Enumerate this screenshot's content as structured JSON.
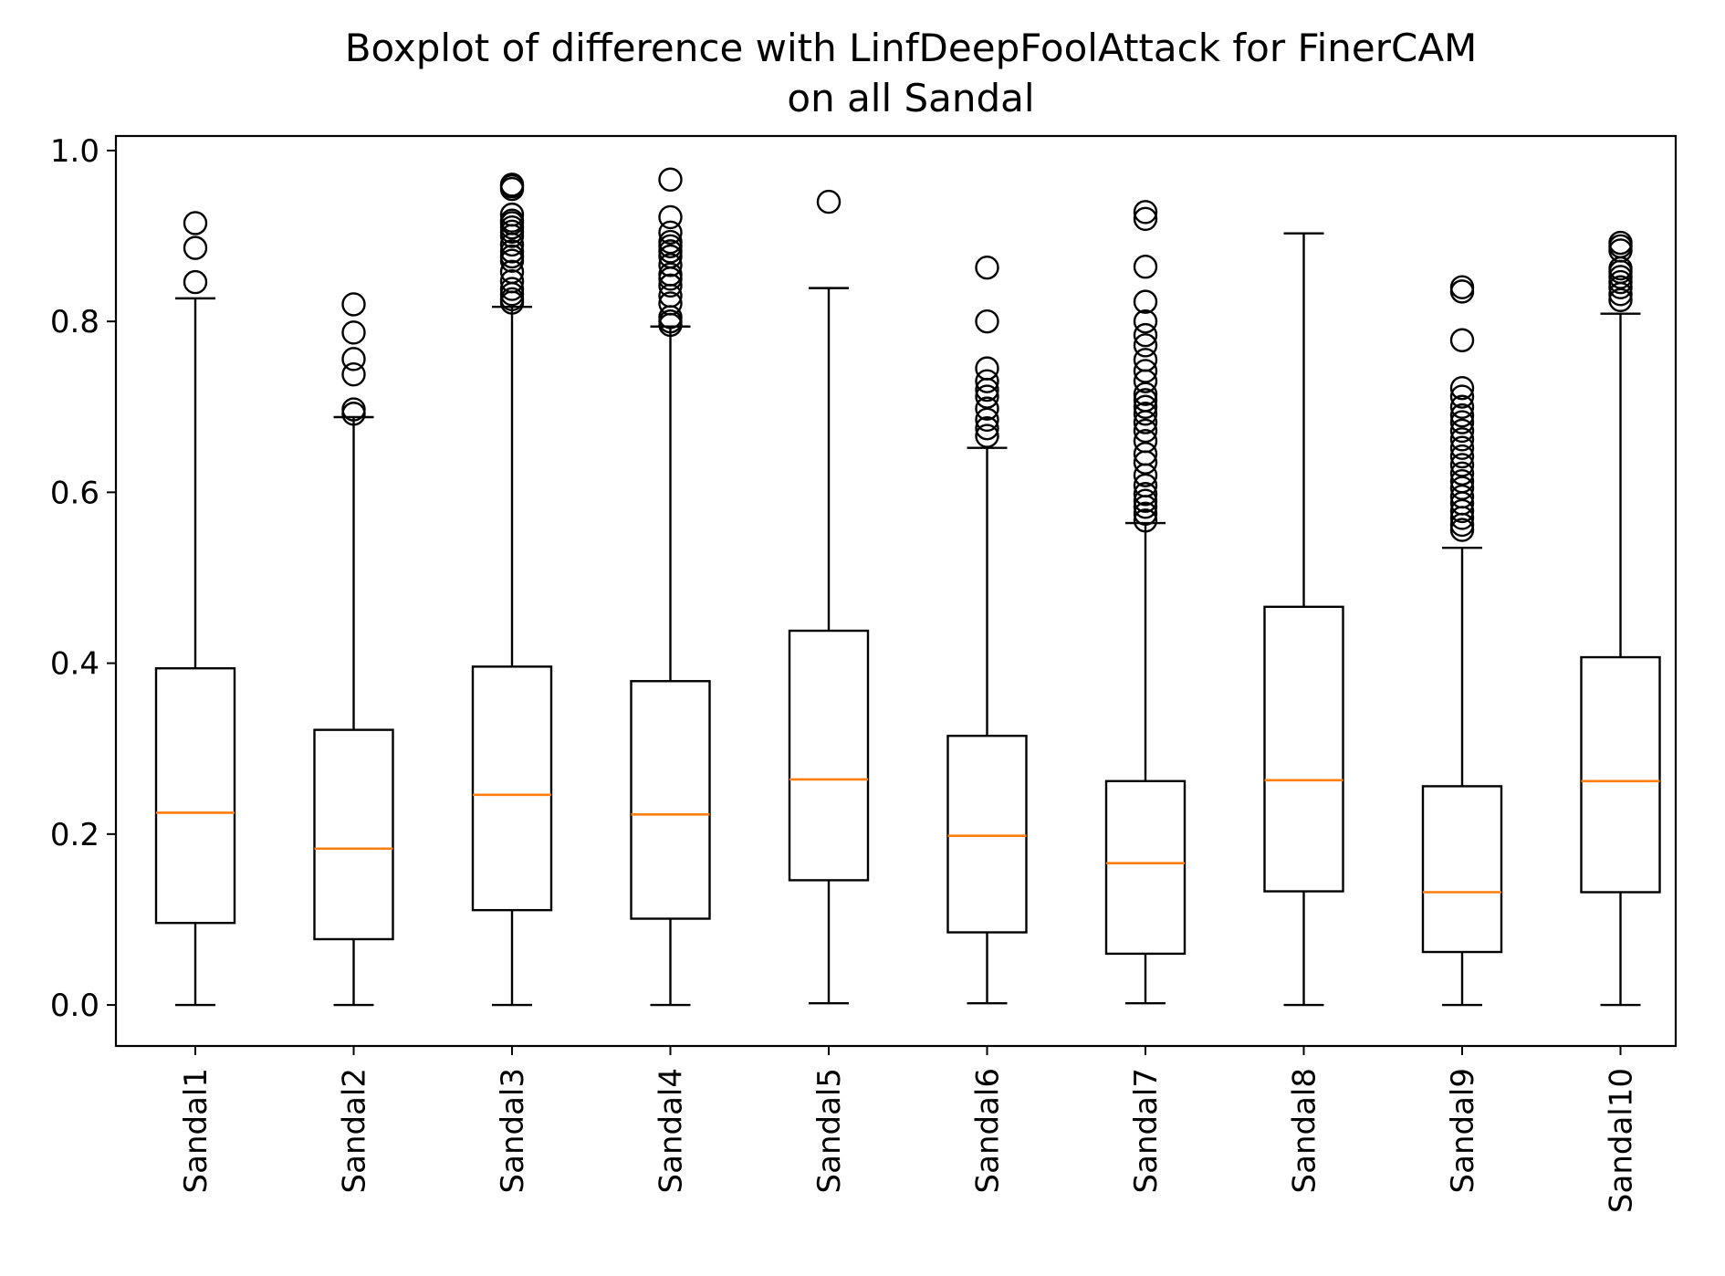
{
  "chart_data": {
    "type": "box",
    "title": [
      "Boxplot of difference with LinfDeepFoolAttack for FinerCAM",
      "on all Sandal"
    ],
    "xlabel": "",
    "ylabel": "",
    "ylim": [
      -0.048,
      1.017
    ],
    "yticks": [
      0.0,
      0.2,
      0.4,
      0.6,
      0.8,
      1.0
    ],
    "ytick_labels": [
      "0.0",
      "0.2",
      "0.4",
      "0.6",
      "0.8",
      "1.0"
    ],
    "grid": false,
    "legend": false,
    "colors": {
      "box": "#000000",
      "median": "#ff7f0e",
      "outlier": "#000000",
      "background": "#ffffff"
    },
    "categories": [
      "Sandal1",
      "Sandal2",
      "Sandal3",
      "Sandal4",
      "Sandal5",
      "Sandal6",
      "Sandal7",
      "Sandal8",
      "Sandal9",
      "Sandal10"
    ],
    "boxes": [
      {
        "label": "Sandal1",
        "whislo": 0.0,
        "q1": 0.096,
        "med": 0.225,
        "q3": 0.394,
        "whishi": 0.827,
        "fliers": [
          0.846,
          0.886,
          0.915
        ]
      },
      {
        "label": "Sandal2",
        "whislo": 0.0,
        "q1": 0.077,
        "med": 0.183,
        "q3": 0.322,
        "whishi": 0.688,
        "fliers": [
          0.692,
          0.697,
          0.738,
          0.756,
          0.787,
          0.82
        ]
      },
      {
        "label": "Sandal3",
        "whislo": 0.0,
        "q1": 0.111,
        "med": 0.246,
        "q3": 0.396,
        "whishi": 0.817,
        "fliers": [
          0.822,
          0.826,
          0.832,
          0.838,
          0.847,
          0.858,
          0.871,
          0.876,
          0.882,
          0.89,
          0.9,
          0.905,
          0.91,
          0.915,
          0.918,
          0.925,
          0.955,
          0.958,
          0.96
        ]
      },
      {
        "label": "Sandal4",
        "whislo": 0.0,
        "q1": 0.101,
        "med": 0.223,
        "q3": 0.379,
        "whishi": 0.794,
        "fliers": [
          0.796,
          0.8,
          0.805,
          0.821,
          0.83,
          0.842,
          0.85,
          0.855,
          0.866,
          0.876,
          0.882,
          0.888,
          0.893,
          0.904,
          0.922,
          0.966
        ]
      },
      {
        "label": "Sandal5",
        "whislo": 0.002,
        "q1": 0.146,
        "med": 0.264,
        "q3": 0.438,
        "whishi": 0.839,
        "fliers": [
          0.94
        ]
      },
      {
        "label": "Sandal6",
        "whislo": 0.002,
        "q1": 0.085,
        "med": 0.198,
        "q3": 0.315,
        "whishi": 0.652,
        "fliers": [
          0.666,
          0.675,
          0.685,
          0.698,
          0.712,
          0.72,
          0.73,
          0.745,
          0.8,
          0.863
        ]
      },
      {
        "label": "Sandal7",
        "whislo": 0.002,
        "q1": 0.06,
        "med": 0.166,
        "q3": 0.262,
        "whishi": 0.564,
        "fliers": [
          0.567,
          0.575,
          0.583,
          0.59,
          0.598,
          0.608,
          0.62,
          0.635,
          0.645,
          0.66,
          0.672,
          0.682,
          0.692,
          0.7,
          0.708,
          0.715,
          0.73,
          0.742,
          0.755,
          0.772,
          0.784,
          0.8,
          0.823,
          0.864,
          0.92,
          0.928
        ]
      },
      {
        "label": "Sandal8",
        "whislo": 0.0,
        "q1": 0.133,
        "med": 0.263,
        "q3": 0.466,
        "whishi": 0.903,
        "fliers": []
      },
      {
        "label": "Sandal9",
        "whislo": 0.0,
        "q1": 0.062,
        "med": 0.132,
        "q3": 0.256,
        "whishi": 0.535,
        "fliers": [
          0.556,
          0.562,
          0.57,
          0.578,
          0.587,
          0.595,
          0.605,
          0.613,
          0.622,
          0.632,
          0.642,
          0.652,
          0.662,
          0.672,
          0.682,
          0.69,
          0.7,
          0.712,
          0.722,
          0.778,
          0.835,
          0.84
        ]
      },
      {
        "label": "Sandal10",
        "whislo": 0.0,
        "q1": 0.132,
        "med": 0.262,
        "q3": 0.407,
        "whishi": 0.809,
        "fliers": [
          0.825,
          0.832,
          0.84,
          0.846,
          0.852,
          0.858,
          0.862,
          0.883,
          0.888,
          0.892
        ]
      }
    ]
  }
}
